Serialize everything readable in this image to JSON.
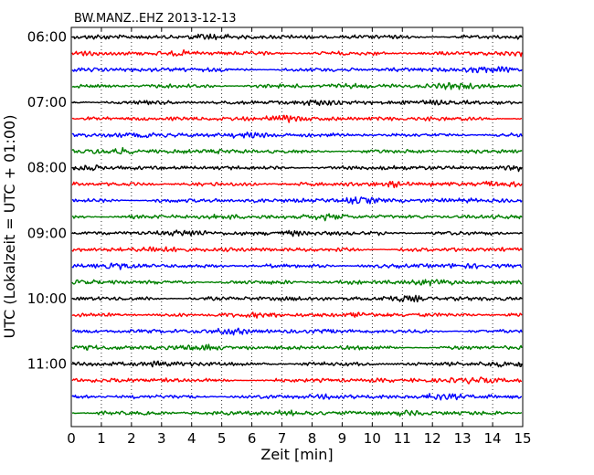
{
  "chart_data": {
    "type": "line",
    "title": "BW.MANZ..EHZ 2013-12-13",
    "xlabel": "Zeit  [min]",
    "ylabel": "UTC (Lokalzeit = UTC + 01:00)",
    "xlim": [
      0,
      15
    ],
    "xticks": [
      "0",
      "1",
      "2",
      "3",
      "4",
      "5",
      "6",
      "7",
      "8",
      "9",
      "10",
      "11",
      "12",
      "13",
      "14",
      "15"
    ],
    "yticks": [
      {
        "label": "06:00",
        "row": 0
      },
      {
        "label": "07:00",
        "row": 4
      },
      {
        "label": "08:00",
        "row": 8
      },
      {
        "label": "09:00",
        "row": 12
      },
      {
        "label": "10:00",
        "row": 16
      },
      {
        "label": "11:00",
        "row": 20
      }
    ],
    "rows": 24,
    "row_colors": [
      "#000000",
      "#ff0000",
      "#0000ff",
      "#008000"
    ],
    "grid": "vertical-dotted"
  }
}
